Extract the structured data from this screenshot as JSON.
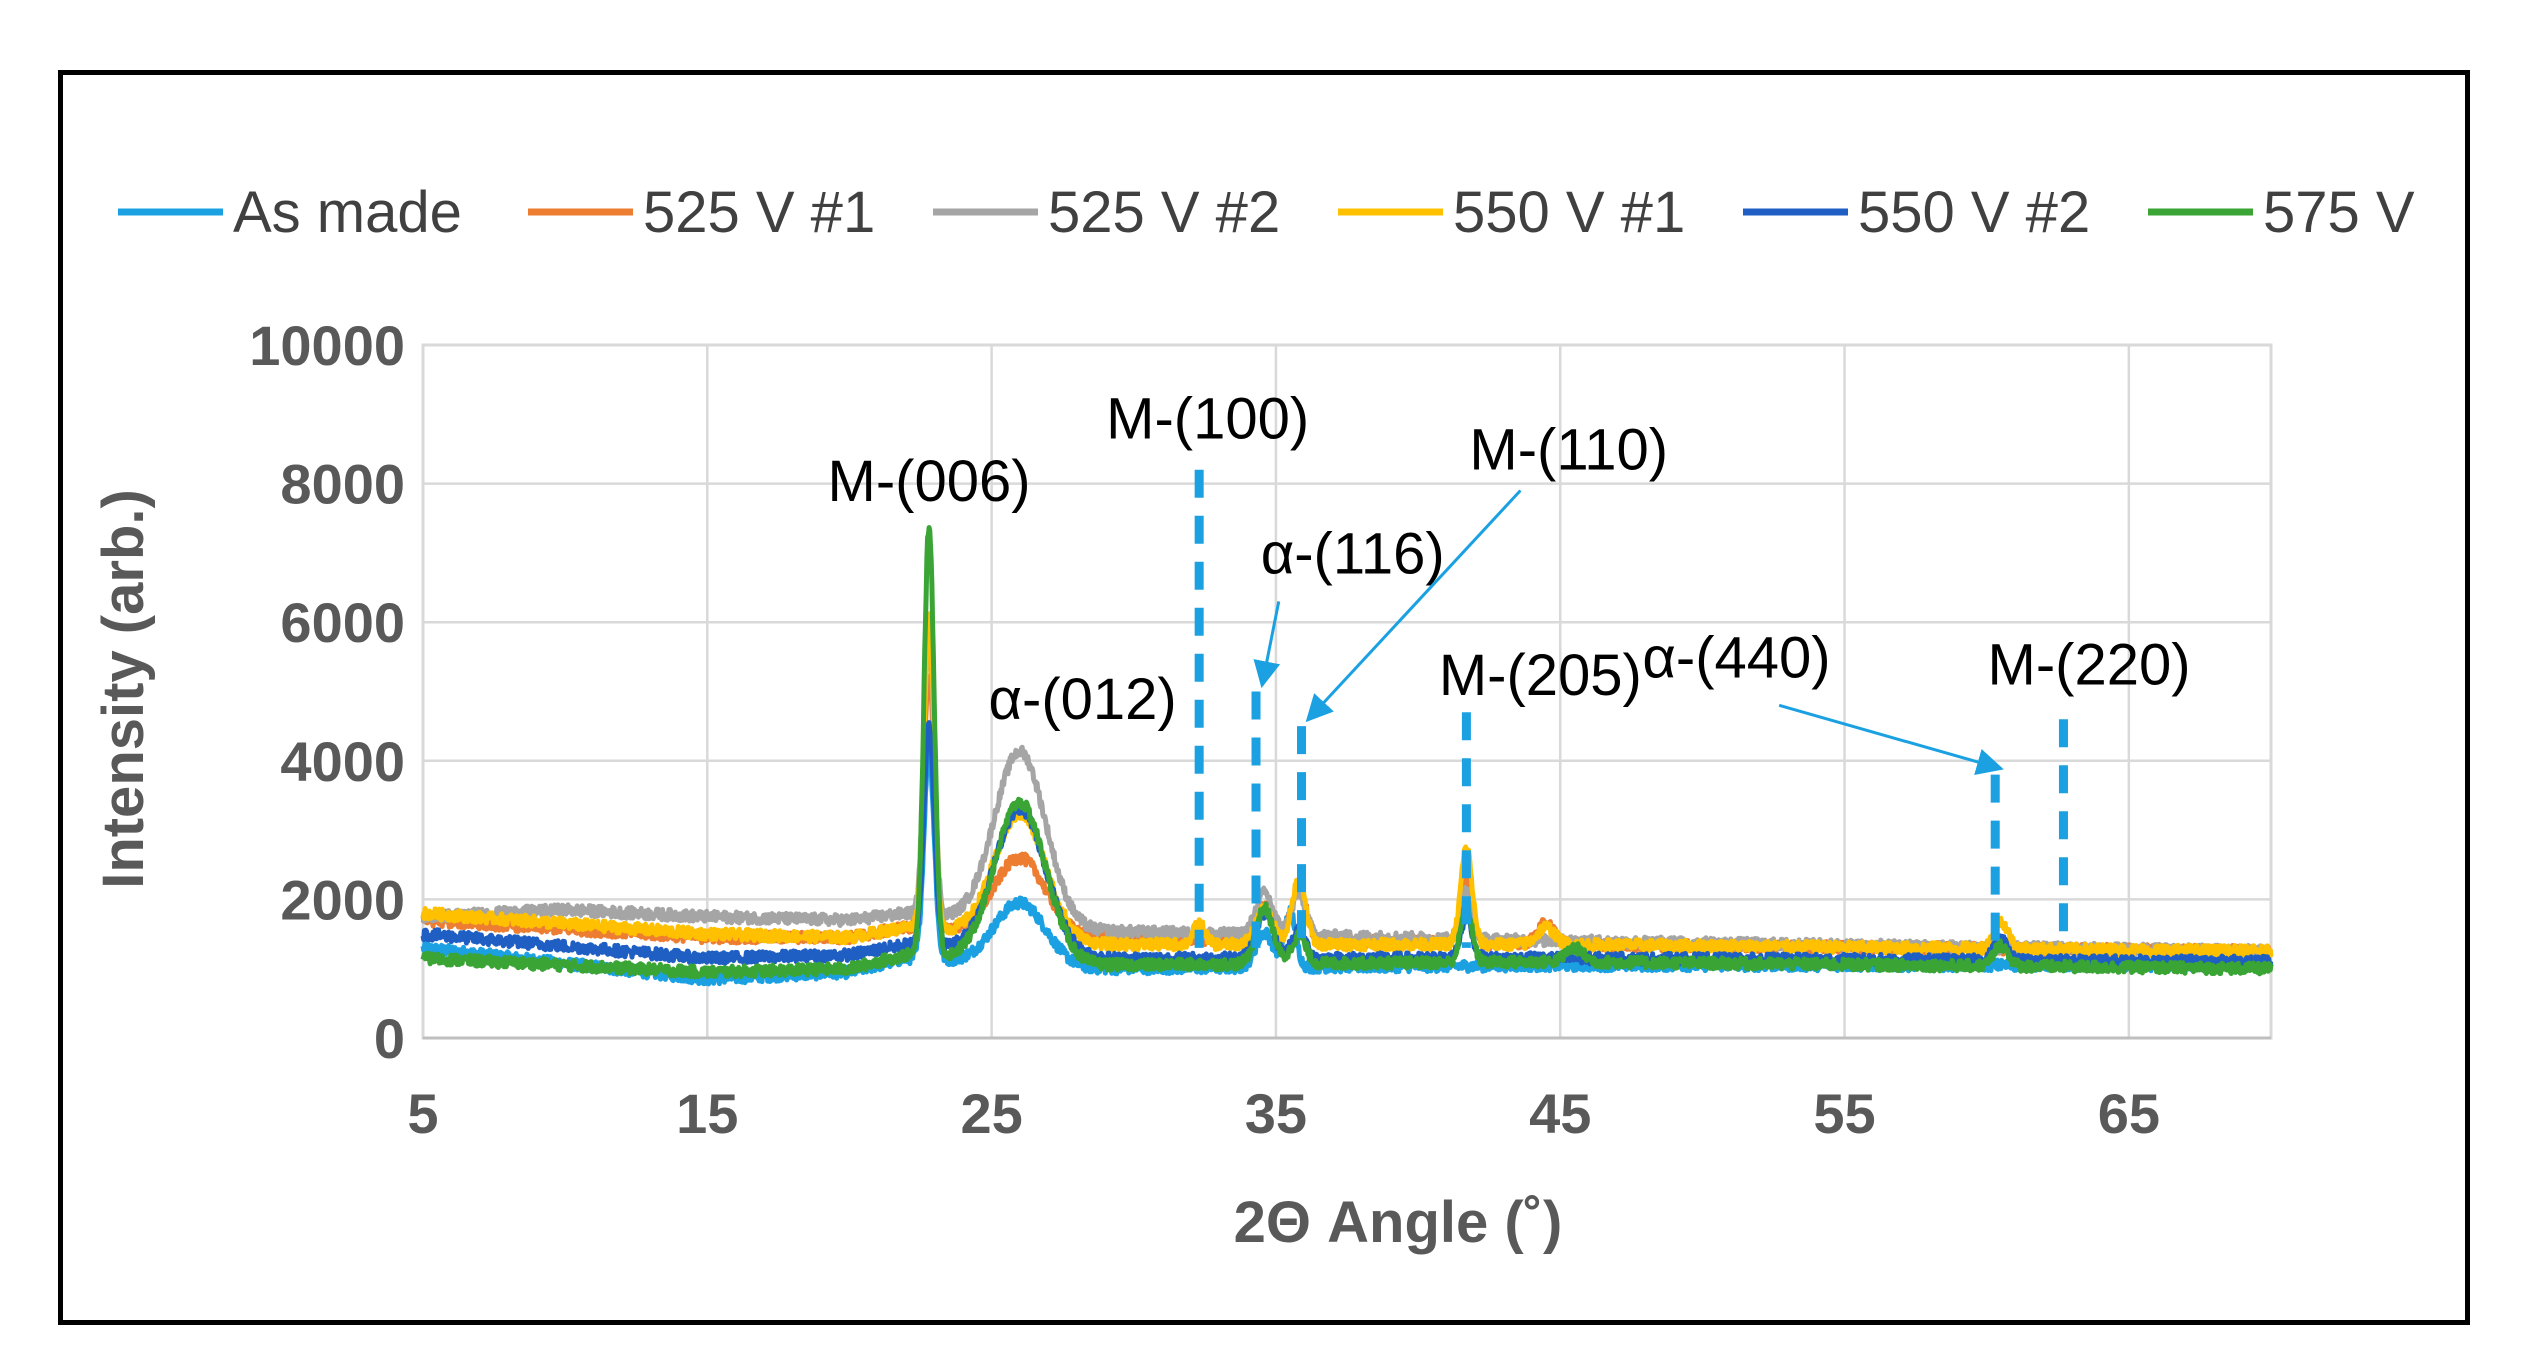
{
  "chart_data": {
    "type": "line",
    "title": "",
    "xlabel": "2Θ Angle (˚)",
    "ylabel": "Intensity (arb.)",
    "xlim": [
      5,
      70
    ],
    "ylim": [
      0,
      10000
    ],
    "x_ticks": [
      5,
      15,
      25,
      35,
      45,
      55,
      65
    ],
    "y_ticks": [
      0,
      2000,
      4000,
      6000,
      8000,
      10000
    ],
    "grid": true,
    "legend_position": "top",
    "series": [
      {
        "name": "As made",
        "color": "#1ba1e2",
        "base": [
          [
            5,
            1300
          ],
          [
            15,
            850
          ],
          [
            20,
            950
          ],
          [
            22,
            1150
          ],
          [
            28,
            1000
          ],
          [
            45,
            1050
          ],
          [
            70,
            1050
          ]
        ],
        "peaks": [
          [
            22.8,
            3000,
            0.18
          ],
          [
            26.0,
            900,
            0.9
          ],
          [
            34.6,
            500,
            0.3
          ],
          [
            35.5,
            800,
            0.2
          ]
        ]
      },
      {
        "name": "525 V #1",
        "color": "#ed7d31",
        "base": [
          [
            5,
            1700
          ],
          [
            15,
            1450
          ],
          [
            20,
            1450
          ],
          [
            22,
            1600
          ],
          [
            28,
            1450
          ],
          [
            45,
            1350
          ],
          [
            70,
            1250
          ]
        ],
        "peaks": [
          [
            22.8,
            3700,
            0.18
          ],
          [
            26.0,
            1100,
            0.9
          ],
          [
            34.6,
            500,
            0.3
          ],
          [
            35.8,
            800,
            0.25
          ],
          [
            41.7,
            900,
            0.2
          ],
          [
            44.5,
            300,
            0.3
          ]
        ]
      },
      {
        "name": "525 V #2",
        "color": "#a5a5a5",
        "base": [
          [
            5,
            1750
          ],
          [
            10,
            1850
          ],
          [
            15,
            1750
          ],
          [
            20,
            1700
          ],
          [
            22,
            1800
          ],
          [
            28,
            1550
          ],
          [
            45,
            1400
          ],
          [
            70,
            1250
          ]
        ],
        "peaks": [
          [
            22.8,
            4000,
            0.18
          ],
          [
            26.0,
            2500,
            0.9
          ],
          [
            34.6,
            600,
            0.3
          ],
          [
            35.8,
            600,
            0.25
          ],
          [
            41.7,
            700,
            0.2
          ]
        ]
      },
      {
        "name": "550 V #1",
        "color": "#ffc000",
        "base": [
          [
            5,
            1800
          ],
          [
            15,
            1500
          ],
          [
            20,
            1450
          ],
          [
            22,
            1600
          ],
          [
            28,
            1350
          ],
          [
            45,
            1350
          ],
          [
            70,
            1250
          ]
        ],
        "peaks": [
          [
            22.8,
            4500,
            0.18
          ],
          [
            26.0,
            1800,
            0.9
          ],
          [
            32.3,
            300,
            0.2
          ],
          [
            34.6,
            500,
            0.3
          ],
          [
            35.8,
            900,
            0.25
          ],
          [
            41.7,
            1400,
            0.2
          ],
          [
            44.5,
            250,
            0.3
          ],
          [
            60.5,
            400,
            0.25
          ]
        ]
      },
      {
        "name": "550 V #2",
        "color": "#1f5fc4",
        "base": [
          [
            5,
            1500
          ],
          [
            15,
            1150
          ],
          [
            20,
            1200
          ],
          [
            22,
            1350
          ],
          [
            28,
            1150
          ],
          [
            45,
            1150
          ],
          [
            70,
            1100
          ]
        ],
        "peaks": [
          [
            22.8,
            3200,
            0.18
          ],
          [
            26.0,
            2100,
            0.9
          ],
          [
            34.6,
            650,
            0.3
          ],
          [
            35.8,
            400,
            0.25
          ],
          [
            41.7,
            600,
            0.2
          ],
          [
            60.5,
            300,
            0.25
          ]
        ]
      },
      {
        "name": "575 V",
        "color": "#3aa435",
        "base": [
          [
            5,
            1150
          ],
          [
            15,
            950
          ],
          [
            20,
            1000
          ],
          [
            22,
            1200
          ],
          [
            28,
            1050
          ],
          [
            45,
            1100
          ],
          [
            70,
            1000
          ]
        ],
        "peaks": [
          [
            22.8,
            6200,
            0.18
          ],
          [
            26.0,
            2300,
            0.9
          ],
          [
            34.6,
            800,
            0.3
          ],
          [
            35.8,
            400,
            0.25
          ],
          [
            41.7,
            800,
            0.2
          ],
          [
            45.5,
            200,
            0.3
          ],
          [
            60.5,
            300,
            0.25
          ]
        ]
      }
    ],
    "annotations": [
      {
        "label": "M-(006)",
        "text_x": 22.8,
        "text_y": 7750,
        "marker_x": null,
        "marker_top": null,
        "arrow_from": null
      },
      {
        "label": "α-(012)",
        "text_x": 28.2,
        "text_y": 4600,
        "marker_x": null,
        "marker_top": null,
        "arrow_from": null
      },
      {
        "label": "M-(100)",
        "text_x": 32.6,
        "text_y": 8650,
        "marker_x": 32.3,
        "marker_top": 8200,
        "arrow_from": null
      },
      {
        "label": "α-(116)",
        "text_x": 37.7,
        "text_y": 6700,
        "marker_x": 34.3,
        "marker_top": 5000,
        "arrow_from": [
          35.1,
          6300
        ]
      },
      {
        "label": "M-(110)",
        "text_x": 45.3,
        "text_y": 8200,
        "marker_x": 35.9,
        "marker_top": 4500,
        "arrow_from": [
          43.6,
          7900
        ]
      },
      {
        "label": "M-(205)",
        "text_x": 44.3,
        "text_y": 4950,
        "marker_x": 41.7,
        "marker_top": 4700,
        "arrow_from": null
      },
      {
        "label": "α-(440)",
        "text_x": 51.2,
        "text_y": 5200,
        "marker_x": 60.3,
        "marker_top": 3800,
        "arrow_from": [
          52.7,
          4800
        ]
      },
      {
        "label": "M-(220)",
        "text_x": 63.6,
        "text_y": 5100,
        "marker_x": 62.7,
        "marker_top": 4600,
        "arrow_from": null
      }
    ]
  }
}
